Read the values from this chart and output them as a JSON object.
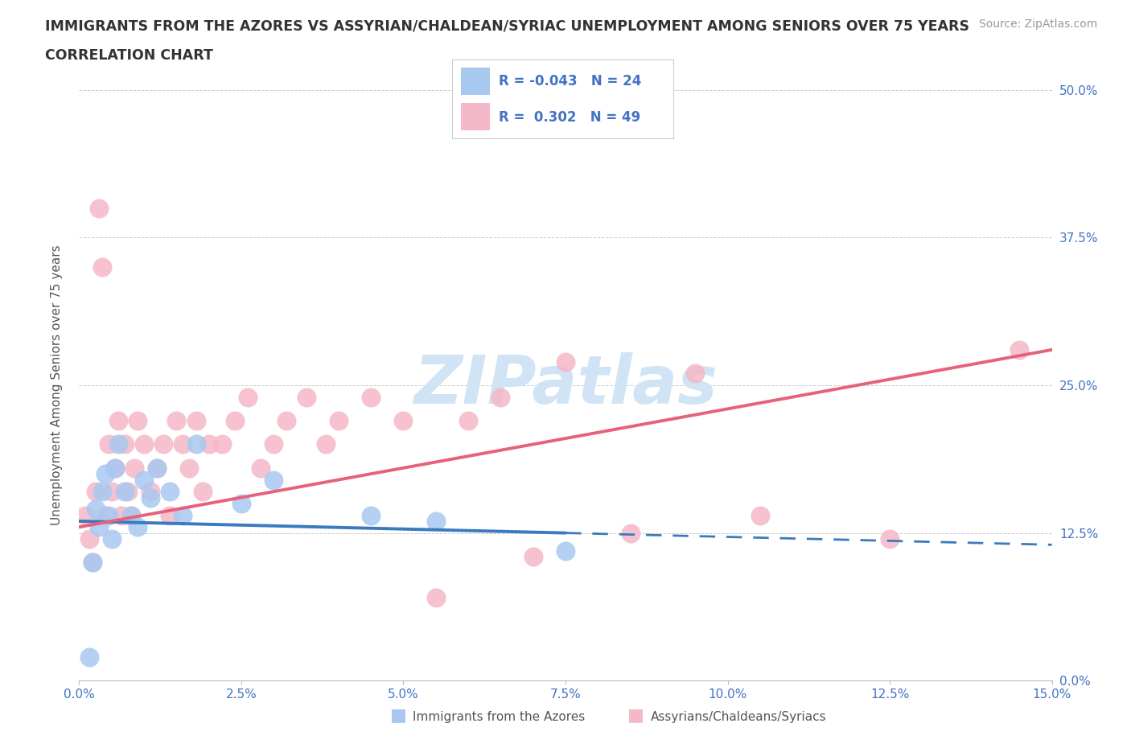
{
  "title_line1": "IMMIGRANTS FROM THE AZORES VS ASSYRIAN/CHALDEAN/SYRIAC UNEMPLOYMENT AMONG SENIORS OVER 75 YEARS",
  "title_line2": "CORRELATION CHART",
  "source_text": "Source: ZipAtlas.com",
  "xlabel_ticks": [
    0.0,
    2.5,
    5.0,
    7.5,
    10.0,
    12.5,
    15.0
  ],
  "ylabel_ticks": [
    0.0,
    12.5,
    25.0,
    37.5,
    50.0
  ],
  "xlim": [
    0.0,
    15.0
  ],
  "ylim": [
    0.0,
    50.0
  ],
  "ylabel": "Unemployment Among Seniors over 75 years",
  "blue_label": "Immigrants from the Azores",
  "pink_label": "Assyrians/Chaldeans/Syriacs",
  "blue_R": -0.043,
  "blue_N": 24,
  "pink_R": 0.302,
  "pink_N": 49,
  "blue_color": "#a8c8f0",
  "pink_color": "#f5b8c8",
  "blue_line_color": "#3a7abf",
  "pink_line_color": "#e8607a",
  "background_color": "#ffffff",
  "watermark_color": "#d0e4f5",
  "blue_scatter_x": [
    0.15,
    0.2,
    0.25,
    0.3,
    0.35,
    0.4,
    0.45,
    0.5,
    0.55,
    0.6,
    0.7,
    0.8,
    0.9,
    1.0,
    1.1,
    1.2,
    1.4,
    1.6,
    1.8,
    2.5,
    3.0,
    4.5,
    5.5,
    7.5
  ],
  "blue_scatter_y": [
    2.0,
    10.0,
    14.5,
    13.0,
    16.0,
    17.5,
    14.0,
    12.0,
    18.0,
    20.0,
    16.0,
    14.0,
    13.0,
    17.0,
    15.5,
    18.0,
    16.0,
    14.0,
    20.0,
    15.0,
    17.0,
    14.0,
    13.5,
    11.0
  ],
  "pink_scatter_x": [
    0.1,
    0.15,
    0.2,
    0.25,
    0.3,
    0.35,
    0.4,
    0.45,
    0.5,
    0.55,
    0.6,
    0.65,
    0.7,
    0.75,
    0.8,
    0.85,
    0.9,
    1.0,
    1.1,
    1.2,
    1.3,
    1.4,
    1.5,
    1.6,
    1.7,
    1.8,
    1.9,
    2.0,
    2.2,
    2.4,
    2.6,
    2.8,
    3.0,
    3.2,
    3.5,
    3.8,
    4.0,
    4.5,
    5.0,
    5.5,
    6.0,
    6.5,
    7.0,
    7.5,
    8.5,
    9.5,
    10.5,
    12.5,
    14.5
  ],
  "pink_scatter_y": [
    14.0,
    12.0,
    10.0,
    16.0,
    40.0,
    35.0,
    14.0,
    20.0,
    16.0,
    18.0,
    22.0,
    14.0,
    20.0,
    16.0,
    14.0,
    18.0,
    22.0,
    20.0,
    16.0,
    18.0,
    20.0,
    14.0,
    22.0,
    20.0,
    18.0,
    22.0,
    16.0,
    20.0,
    20.0,
    22.0,
    24.0,
    18.0,
    20.0,
    22.0,
    24.0,
    20.0,
    22.0,
    24.0,
    22.0,
    7.0,
    22.0,
    24.0,
    10.5,
    27.0,
    12.5,
    26.0,
    14.0,
    12.0,
    28.0
  ],
  "blue_line_y0": 13.5,
  "blue_line_y1": 11.5,
  "pink_line_y0": 13.0,
  "pink_line_y1": 28.0,
  "blue_solid_xmax": 7.5,
  "grid_color": "#cccccc",
  "title_fontsize": 12.5,
  "axis_label_fontsize": 11,
  "tick_fontsize": 11,
  "legend_fontsize": 13,
  "source_fontsize": 10
}
